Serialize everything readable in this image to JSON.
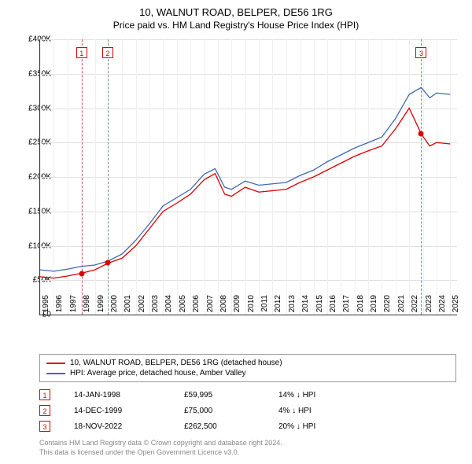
{
  "title": "10, WALNUT ROAD, BELPER, DE56 1RG",
  "subtitle": "Price paid vs. HM Land Registry's House Price Index (HPI)",
  "chart": {
    "type": "line",
    "xlim": [
      1995,
      2025.5
    ],
    "ylim": [
      0,
      400000
    ],
    "ytick_step": 50000,
    "yticks": [
      "£0",
      "£50K",
      "£100K",
      "£150K",
      "£200K",
      "£250K",
      "£300K",
      "£350K",
      "£400K"
    ],
    "xticks": [
      1995,
      1996,
      1997,
      1998,
      1999,
      2000,
      2001,
      2002,
      2003,
      2004,
      2005,
      2006,
      2007,
      2008,
      2009,
      2010,
      2011,
      2012,
      2013,
      2014,
      2015,
      2016,
      2017,
      2018,
      2019,
      2020,
      2021,
      2022,
      2023,
      2024,
      2025
    ],
    "background_color": "#ffffff",
    "grid_color": "#e0e0e0",
    "series": [
      {
        "name": "10, WALNUT ROAD, BELPER, DE56 1RG (detached house)",
        "color": "#dd0000",
        "width": 1.3,
        "data": [
          [
            1995,
            55000
          ],
          [
            1996,
            53000
          ],
          [
            1997,
            56000
          ],
          [
            1998,
            59995
          ],
          [
            1999,
            65000
          ],
          [
            2000,
            75000
          ],
          [
            2001,
            82000
          ],
          [
            2002,
            100000
          ],
          [
            2003,
            125000
          ],
          [
            2004,
            150000
          ],
          [
            2005,
            162000
          ],
          [
            2006,
            175000
          ],
          [
            2007,
            196000
          ],
          [
            2007.8,
            205000
          ],
          [
            2008.5,
            175000
          ],
          [
            2009,
            172000
          ],
          [
            2010,
            185000
          ],
          [
            2011,
            178000
          ],
          [
            2012,
            180000
          ],
          [
            2013,
            182000
          ],
          [
            2014,
            192000
          ],
          [
            2015,
            200000
          ],
          [
            2016,
            210000
          ],
          [
            2017,
            220000
          ],
          [
            2018,
            230000
          ],
          [
            2019,
            238000
          ],
          [
            2020,
            245000
          ],
          [
            2021,
            270000
          ],
          [
            2022,
            300000
          ],
          [
            2022.88,
            262500
          ],
          [
            2023.5,
            245000
          ],
          [
            2024,
            250000
          ],
          [
            2025,
            248000
          ]
        ]
      },
      {
        "name": "HPI: Average price, detached house, Amber Valley",
        "color": "#4169b0",
        "width": 1.3,
        "data": [
          [
            1995,
            65000
          ],
          [
            1996,
            63000
          ],
          [
            1997,
            66000
          ],
          [
            1998,
            70000
          ],
          [
            1999,
            72000
          ],
          [
            2000,
            78000
          ],
          [
            2001,
            88000
          ],
          [
            2002,
            108000
          ],
          [
            2003,
            132000
          ],
          [
            2004,
            158000
          ],
          [
            2005,
            170000
          ],
          [
            2006,
            182000
          ],
          [
            2007,
            204000
          ],
          [
            2007.8,
            212000
          ],
          [
            2008.5,
            185000
          ],
          [
            2009,
            182000
          ],
          [
            2010,
            194000
          ],
          [
            2011,
            188000
          ],
          [
            2012,
            190000
          ],
          [
            2013,
            192000
          ],
          [
            2014,
            202000
          ],
          [
            2015,
            210000
          ],
          [
            2016,
            222000
          ],
          [
            2017,
            232000
          ],
          [
            2018,
            242000
          ],
          [
            2019,
            250000
          ],
          [
            2020,
            258000
          ],
          [
            2021,
            285000
          ],
          [
            2022,
            320000
          ],
          [
            2022.88,
            330000
          ],
          [
            2023.5,
            315000
          ],
          [
            2024,
            322000
          ],
          [
            2025,
            320000
          ]
        ]
      }
    ],
    "sale_markers": [
      {
        "n": "1",
        "year": 1998.04,
        "price": 59995,
        "color": "#cc6666"
      },
      {
        "n": "2",
        "year": 1999.95,
        "price": 75000,
        "color": "#66aa66"
      },
      {
        "n": "3",
        "year": 2022.88,
        "price": 262500,
        "color": "#6688dd"
      }
    ]
  },
  "legend": {
    "items": [
      {
        "label": "10, WALNUT ROAD, BELPER, DE56 1RG (detached house)",
        "color": "#dd0000"
      },
      {
        "label": "HPI: Average price, detached house, Amber Valley",
        "color": "#4169b0"
      }
    ]
  },
  "sales_table": [
    {
      "n": "1",
      "date": "14-JAN-1998",
      "price": "£59,995",
      "diff": "14% ↓ HPI"
    },
    {
      "n": "2",
      "date": "14-DEC-1999",
      "price": "£75,000",
      "diff": "4% ↓ HPI"
    },
    {
      "n": "3",
      "date": "18-NOV-2022",
      "price": "£262,500",
      "diff": "20% ↓ HPI"
    }
  ],
  "footer": {
    "line1": "Contains HM Land Registry data © Crown copyright and database right 2024.",
    "line2": "This data is licensed under the Open Government Licence v3.0."
  }
}
